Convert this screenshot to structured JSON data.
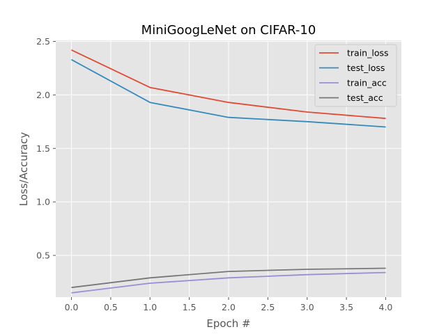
{
  "chart_data": {
    "type": "line",
    "title": "MiniGoogLeNet on CIFAR-10",
    "xlabel": "Epoch #",
    "ylabel": "Loss/Accuracy",
    "x": [
      0,
      1,
      2,
      3,
      4
    ],
    "xlim": [
      -0.2,
      4.2
    ],
    "ylim": [
      0.11,
      2.51
    ],
    "xticks": [
      "0.0",
      "0.5",
      "1.0",
      "1.5",
      "2.0",
      "2.5",
      "3.0",
      "3.5",
      "4.0"
    ],
    "yticks": [
      "0.5",
      "1.0",
      "1.5",
      "2.0",
      "2.5"
    ],
    "grid": true,
    "legend": "top-right",
    "series": [
      {
        "name": "train_loss",
        "color": "#E24A33",
        "values": [
          2.42,
          2.07,
          1.93,
          1.84,
          1.78
        ]
      },
      {
        "name": "test_loss",
        "color": "#348ABD",
        "values": [
          2.33,
          1.93,
          1.79,
          1.75,
          1.7
        ]
      },
      {
        "name": "train_acc",
        "color": "#988ED5",
        "values": [
          0.15,
          0.24,
          0.29,
          0.32,
          0.34
        ]
      },
      {
        "name": "test_acc",
        "color": "#777777",
        "values": [
          0.2,
          0.29,
          0.35,
          0.37,
          0.38
        ]
      }
    ]
  }
}
